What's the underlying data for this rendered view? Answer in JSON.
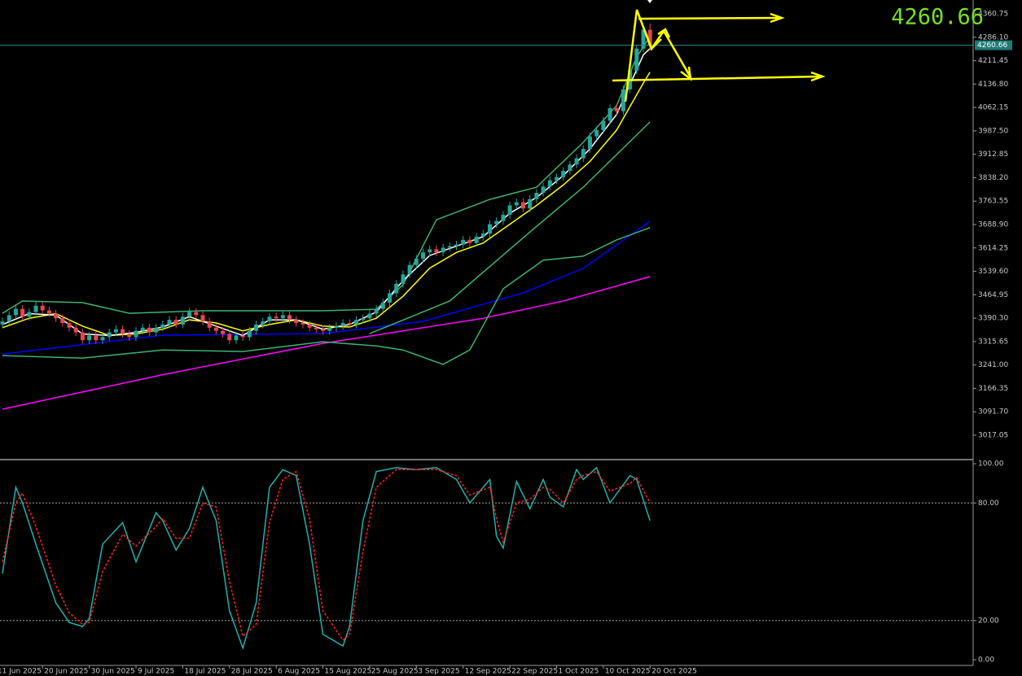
{
  "chart_data": [
    {
      "type": "candlestick",
      "xlim": [
        -0.37,
        145.4
      ],
      "ylim": [
        2944.45,
        4404.85
      ],
      "yticks": [
        4360.75,
        {
          "value": 4286.1,
          "label": "4286.10"
        },
        4211.45,
        {
          "value": 4136.8,
          "label": "4136.80"
        },
        4062.15,
        {
          "value": 3987.5,
          "label": "3987.50"
        },
        3912.85,
        {
          "value": 3838.2,
          "label": "3838.20"
        },
        3763.55,
        {
          "value": 3688.9,
          "label": "3688.90"
        },
        3614.25,
        {
          "value": 3539.6,
          "label": "3539.60"
        },
        3464.95,
        {
          "value": 3390.3,
          "label": "3390.30"
        },
        3315.65,
        {
          "value": 3241.0,
          "label": "3241.00"
        },
        3166.35,
        {
          "value": 3091.7,
          "label": "3091.70"
        },
        3017.05
      ],
      "up_color": "#26a69a",
      "down_color": "#e8474f",
      "current_price": 4260.66,
      "open": [
        3370,
        3380,
        3400,
        3420,
        3395,
        3410,
        3430,
        3415,
        3405,
        3390,
        3375,
        3360,
        3345,
        3320,
        3335,
        3320,
        3330,
        3345,
        3355,
        3340,
        3330,
        3350,
        3360,
        3345,
        3360,
        3370,
        3385,
        3370,
        3395,
        3410,
        3400,
        3380,
        3360,
        3350,
        3340,
        3320,
        3335,
        3330,
        3350,
        3370,
        3380,
        3395,
        3390,
        3400,
        3385,
        3375,
        3370,
        3360,
        3355,
        3350,
        3360,
        3365,
        3375,
        3370,
        3385,
        3390,
        3405,
        3420,
        3440,
        3470,
        3500,
        3530,
        3560,
        3580,
        3600,
        3610,
        3600,
        3615,
        3620,
        3625,
        3640,
        3630,
        3650,
        3660,
        3690,
        3700,
        3720,
        3750,
        3760,
        3740,
        3770,
        3790,
        3810,
        3830,
        3840,
        3860,
        3880,
        3900,
        3930,
        3970,
        3990,
        4020,
        4060,
        4050,
        4120,
        4180,
        4250,
        4310
      ],
      "high": [
        3392,
        3412,
        3432,
        3432,
        3422,
        3442,
        3442,
        3427,
        3417,
        3402,
        3387,
        3372,
        3357,
        3347,
        3347,
        3342,
        3357,
        3367,
        3367,
        3352,
        3362,
        3372,
        3372,
        3372,
        3382,
        3397,
        3397,
        3407,
        3422,
        3422,
        3412,
        3392,
        3372,
        3362,
        3352,
        3347,
        3347,
        3362,
        3382,
        3392,
        3407,
        3407,
        3412,
        3412,
        3397,
        3387,
        3382,
        3372,
        3367,
        3372,
        3377,
        3387,
        3387,
        3397,
        3402,
        3417,
        3432,
        3452,
        3482,
        3512,
        3542,
        3572,
        3592,
        3612,
        3622,
        3622,
        3627,
        3632,
        3637,
        3652,
        3652,
        3662,
        3672,
        3702,
        3712,
        3732,
        3762,
        3772,
        3772,
        3782,
        3802,
        3822,
        3842,
        3852,
        3872,
        3892,
        3912,
        3942,
        3982,
        4002,
        4032,
        4072,
        4072,
        4132,
        4192,
        4262,
        4322,
        4330
      ],
      "low": [
        3358,
        3368,
        3388,
        3383,
        3383,
        3398,
        3403,
        3393,
        3378,
        3363,
        3348,
        3333,
        3308,
        3308,
        3308,
        3308,
        3318,
        3333,
        3328,
        3318,
        3318,
        3338,
        3333,
        3333,
        3348,
        3358,
        3358,
        3358,
        3383,
        3388,
        3368,
        3348,
        3338,
        3328,
        3308,
        3308,
        3318,
        3318,
        3338,
        3358,
        3368,
        3378,
        3378,
        3373,
        3363,
        3358,
        3348,
        3343,
        3338,
        3338,
        3348,
        3353,
        3358,
        3358,
        3373,
        3378,
        3393,
        3408,
        3428,
        3458,
        3488,
        3518,
        3548,
        3568,
        3588,
        3588,
        3588,
        3603,
        3608,
        3613,
        3618,
        3618,
        3638,
        3648,
        3678,
        3688,
        3708,
        3738,
        3728,
        3728,
        3758,
        3778,
        3798,
        3818,
        3828,
        3848,
        3868,
        3888,
        3918,
        3958,
        3978,
        4008,
        4038,
        4038,
        4108,
        4168,
        4238,
        4245
      ],
      "close": [
        3380,
        3400,
        3420,
        3395,
        3410,
        3430,
        3415,
        3405,
        3390,
        3375,
        3360,
        3345,
        3320,
        3335,
        3320,
        3330,
        3345,
        3355,
        3340,
        3330,
        3350,
        3360,
        3345,
        3360,
        3370,
        3385,
        3370,
        3395,
        3410,
        3400,
        3380,
        3360,
        3350,
        3340,
        3320,
        3335,
        3330,
        3350,
        3370,
        3380,
        3395,
        3390,
        3400,
        3385,
        3375,
        3370,
        3360,
        3355,
        3350,
        3360,
        3365,
        3375,
        3370,
        3385,
        3390,
        3405,
        3420,
        3440,
        3470,
        3500,
        3530,
        3560,
        3580,
        3600,
        3610,
        3600,
        3615,
        3620,
        3625,
        3640,
        3630,
        3650,
        3660,
        3690,
        3700,
        3720,
        3750,
        3760,
        3740,
        3770,
        3790,
        3810,
        3830,
        3840,
        3860,
        3880,
        3900,
        3930,
        3970,
        3990,
        4020,
        4060,
        4050,
        4120,
        4180,
        4250,
        4310,
        4260.66
      ],
      "series": [
        {
          "color": "#ff00ff",
          "x": [
            0,
            24,
            48,
            60,
            72,
            84,
            97
          ],
          "values": [
            3100,
            3210,
            3310,
            3350,
            3390,
            3445,
            3523
          ]
        },
        {
          "color": "#0000ff",
          "x": [
            0,
            24,
            48,
            63,
            78,
            87,
            97
          ],
          "values": [
            3276,
            3336,
            3341,
            3380,
            3471,
            3549,
            3699
          ]
        },
        {
          "color": "#3cb371",
          "x": [
            0,
            3,
            12,
            19,
            30,
            48,
            56,
            60,
            65,
            73,
            80,
            87,
            92,
            95,
            97
          ],
          "values": [
            3406,
            3445,
            3440,
            3406,
            3414,
            3414,
            3419,
            3497,
            3704,
            3769,
            3808,
            3951,
            4068,
            4223,
            4288
          ]
        },
        {
          "color": "#3cb371",
          "x": [
            0,
            12,
            24,
            36,
            48,
            56,
            60,
            66,
            70,
            75,
            81,
            87,
            92,
            97
          ],
          "values": [
            3271,
            3263,
            3289,
            3284,
            3315,
            3302,
            3289,
            3243,
            3289,
            3484,
            3575,
            3588,
            3640,
            3679
          ]
        },
        {
          "color": "#3cb371",
          "x": [
            55,
            67,
            79,
            87,
            97
          ],
          "values": [
            3341,
            3445,
            3665,
            3808,
            4016
          ]
        },
        {
          "color": "#ffff00",
          "x": [
            0,
            4,
            8,
            12,
            16,
            20,
            24,
            28,
            32,
            36,
            40,
            44,
            48,
            52,
            56,
            60,
            64,
            68,
            72,
            76,
            80,
            84,
            88,
            92,
            96,
            97
          ],
          "values": [
            3360,
            3390,
            3405,
            3365,
            3335,
            3340,
            3355,
            3385,
            3375,
            3350,
            3370,
            3385,
            3365,
            3362,
            3390,
            3460,
            3550,
            3600,
            3630,
            3690,
            3750,
            3815,
            3890,
            3990,
            4140,
            4175
          ]
        },
        {
          "color": "#ffffff",
          "x": [
            0,
            4,
            8,
            12,
            16,
            20,
            24,
            28,
            32,
            36,
            40,
            44,
            48,
            52,
            56,
            60,
            64,
            68,
            72,
            76,
            80,
            84,
            88,
            92,
            96,
            97
          ],
          "values": [
            3370,
            3405,
            3400,
            3340,
            3335,
            3345,
            3362,
            3395,
            3365,
            3335,
            3385,
            3385,
            3355,
            3370,
            3410,
            3510,
            3590,
            3620,
            3650,
            3725,
            3775,
            3845,
            3930,
            4040,
            4230,
            4250
          ]
        }
      ]
    },
    {
      "type": "line",
      "xlim": [
        -0.37,
        145.4
      ],
      "ylim": [
        -2.9,
        101.7
      ],
      "yticks": [
        {
          "value": 100,
          "label": "100.00"
        },
        {
          "value": 80,
          "label": "80.00"
        },
        {
          "value": 20,
          "label": "20.00"
        },
        {
          "value": 0,
          "label": "0.00"
        }
      ],
      "levels": [
        80,
        20
      ],
      "xticks": [
        {
          "value": -1,
          "label": "11 Jun 2025"
        },
        {
          "value": 6,
          "label": "20 Jun 2025"
        },
        {
          "value": 13,
          "label": "30 Jun 2025"
        },
        {
          "value": 20,
          "label": "9 Jul 2025"
        },
        {
          "value": 27,
          "label": "18 Jul 2025"
        },
        {
          "value": 34,
          "label": "28 Jul 2025"
        },
        {
          "value": 41,
          "label": "6 Aug 2025"
        },
        {
          "value": 48,
          "label": "15 Aug 2025"
        },
        {
          "value": 55,
          "label": "25 Aug 2025"
        },
        {
          "value": 62,
          "label": "3 Sep 2025"
        },
        {
          "value": 69,
          "label": "12 Sep 2025"
        },
        {
          "value": 76,
          "label": "22 Sep 2025"
        },
        {
          "value": 83,
          "label": "1 Oct 2025"
        },
        {
          "value": 90,
          "label": "10 Oct 2025"
        },
        {
          "value": 97,
          "label": "20 Oct 2025"
        }
      ],
      "series": [
        {
          "color": "#20b2aa",
          "dashed": false,
          "x": [
            0,
            2,
            3,
            5,
            8,
            10,
            12,
            13,
            15,
            18,
            20,
            23,
            24,
            26,
            28,
            30,
            32,
            34,
            36,
            38,
            40,
            42,
            44,
            46,
            48,
            51,
            52,
            54,
            56,
            59,
            62,
            65,
            68,
            70,
            73,
            74,
            75,
            77,
            79,
            81,
            82,
            84,
            86,
            87,
            89,
            91,
            94,
            95,
            97
          ],
          "values": [
            44,
            88,
            80,
            59,
            29,
            19,
            17,
            21,
            59,
            70,
            50,
            75,
            71,
            56,
            67,
            88,
            71,
            25,
            6,
            29,
            88,
            97,
            94,
            59,
            13,
            7,
            17,
            71,
            96,
            98,
            97,
            98,
            92,
            80,
            92,
            63,
            57,
            91,
            77,
            92,
            83,
            78,
            97,
            92,
            98,
            80,
            94,
            92,
            71
          ]
        },
        {
          "color": "#ff2020",
          "dashed": true,
          "x": [
            0,
            2,
            3,
            5,
            8,
            10,
            12,
            13,
            15,
            18,
            20,
            23,
            24,
            26,
            28,
            30,
            32,
            34,
            36,
            38,
            40,
            42,
            44,
            46,
            48,
            51,
            52,
            54,
            56,
            59,
            62,
            65,
            68,
            70,
            73,
            74,
            75,
            77,
            79,
            81,
            82,
            84,
            86,
            87,
            89,
            91,
            94,
            95,
            97
          ],
          "values": [
            50,
            80,
            85,
            68,
            38,
            24,
            18,
            19,
            45,
            64,
            58,
            68,
            72,
            62,
            62,
            80,
            78,
            40,
            12,
            18,
            70,
            92,
            96,
            72,
            25,
            10,
            13,
            55,
            88,
            97,
            97,
            97,
            94,
            84,
            88,
            72,
            60,
            80,
            82,
            88,
            87,
            80,
            92,
            94,
            96,
            86,
            90,
            93,
            80
          ]
        }
      ]
    }
  ]
}
